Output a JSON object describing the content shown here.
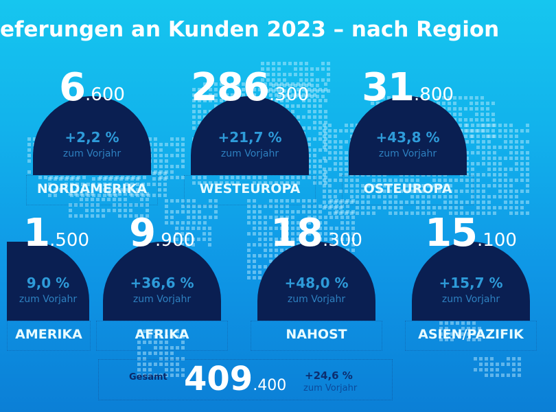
{
  "title": "eferungen an Kunden 2023 – nach Region",
  "regions": [
    {
      "id": "nordamerika",
      "label": "NORDAMERIKA",
      "value_big": "6",
      "value_small": ".600",
      "change": "+2,2 %",
      "sub": "zum Vorjahr"
    },
    {
      "id": "westeuropa",
      "label": "WESTEUROPA",
      "value_big": "286",
      "value_small": ".300",
      "change": "+21,7 %",
      "sub": "zum Vorjahr"
    },
    {
      "id": "osteuropa",
      "label": "OSTEUROPA",
      "value_big": "31",
      "value_small": ".800",
      "change": "+43,8 %",
      "sub": "zum Vorjahr"
    },
    {
      "id": "suedamerika",
      "label": "AMERIKA",
      "value_big": "1",
      "value_small": ".500",
      "change": "9,0 %",
      "sub": "zum Vorjahr"
    },
    {
      "id": "afrika",
      "label": "AFRIKA",
      "value_big": "9",
      "value_small": ".900",
      "change": "+36,6 %",
      "sub": "zum Vorjahr"
    },
    {
      "id": "nahost",
      "label": "NAHOST",
      "value_big": "18",
      "value_small": ".300",
      "change": "+48,0 %",
      "sub": "zum Vorjahr"
    },
    {
      "id": "asien-pazifik",
      "label": "ASIEN/PAZIFIK",
      "value_big": "15",
      "value_small": ".100",
      "change": "+15,7 %",
      "sub": "zum Vorjahr"
    }
  ],
  "total": {
    "label": "Gesamt",
    "value_big": "409",
    "value_small": ".400",
    "change": "+24,6 %",
    "sub": "zum Vorjahr"
  },
  "colors": {
    "dome": "#0a1f52",
    "change_text": "#2e9bd9",
    "background_top": "#16c6ef",
    "background_bottom": "#0b7fd6"
  }
}
